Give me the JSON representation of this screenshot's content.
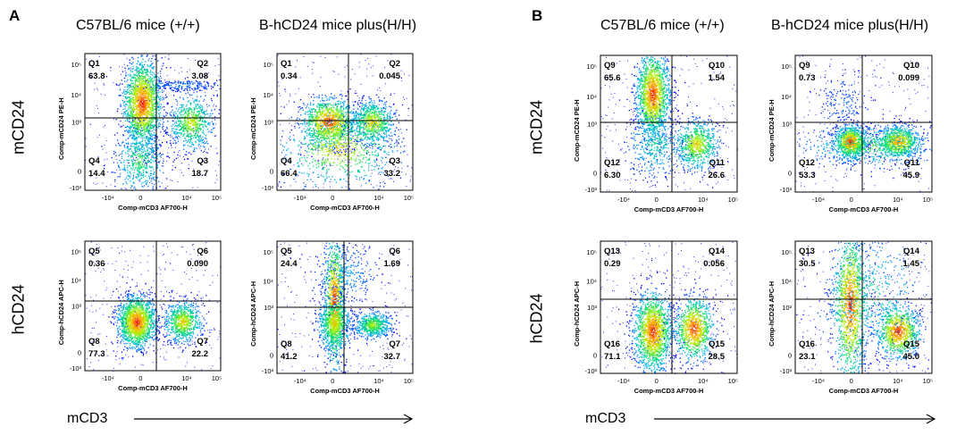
{
  "figure": {
    "panel_a_letter": "A",
    "panel_b_letter": "B",
    "row_top_label": "mCD24",
    "row_bottom_label": "hCD24",
    "footer_label": "mCD3",
    "columns": [
      "C57BL/6 mice (+/+)",
      "B-hCD24 mice plus(H/H)",
      "C57BL/6 mice (+/+)",
      "B-hCD24 mice plus(H/H)"
    ],
    "x_axis_title": "Comp-mCD3 AF700-H",
    "x_tick_labels": [
      "-10⁴",
      "0",
      "10⁴",
      "10⁵"
    ],
    "y_tick_labels": [
      "-10³",
      "0",
      "10³",
      "10⁴",
      "10⁵"
    ],
    "y_axis_titles": {
      "mcd24": "Comp-mCD24 PE-H",
      "hcd24": "Comp-hCD24 APC-H"
    }
  },
  "chart_data": [
    {
      "type": "scatter",
      "plot": "A-mCD24-C57BL6",
      "y_axis": "Comp-mCD24 PE-H",
      "x_axis": "Comp-mCD3 AF700-H",
      "quadrants": [
        {
          "q": "Q1",
          "value": "63.8"
        },
        {
          "q": "Q2",
          "value": "3.08"
        },
        {
          "q": "Q3",
          "value": "18.7"
        },
        {
          "q": "Q4",
          "value": "14.4"
        }
      ]
    },
    {
      "type": "scatter",
      "plot": "A-mCD24-BhCD24",
      "y_axis": "Comp-mCD24 PE-H",
      "x_axis": "Comp-mCD3 AF700-H",
      "quadrants": [
        {
          "q": "Q1",
          "value": "0.34"
        },
        {
          "q": "Q2",
          "value": "0.045"
        },
        {
          "q": "Q3",
          "value": "33.2"
        },
        {
          "q": "Q4",
          "value": "66.4"
        }
      ]
    },
    {
      "type": "scatter",
      "plot": "A-hCD24-C57BL6",
      "y_axis": "Comp-hCD24 APC-H",
      "x_axis": "Comp-mCD3 AF700-H",
      "quadrants": [
        {
          "q": "Q5",
          "value": "0.36"
        },
        {
          "q": "Q6",
          "value": "0.090"
        },
        {
          "q": "Q7",
          "value": "22.2"
        },
        {
          "q": "Q8",
          "value": "77.3"
        }
      ]
    },
    {
      "type": "scatter",
      "plot": "A-hCD24-BhCD24",
      "y_axis": "Comp-hCD24 APC-H",
      "x_axis": "Comp-mCD3 AF700-H",
      "quadrants": [
        {
          "q": "Q5",
          "value": "24.4"
        },
        {
          "q": "Q6",
          "value": "1.69"
        },
        {
          "q": "Q7",
          "value": "32.7"
        },
        {
          "q": "Q8",
          "value": "41.2"
        }
      ]
    },
    {
      "type": "scatter",
      "plot": "B-mCD24-C57BL6",
      "y_axis": "Comp-mCD24 PE-H",
      "x_axis": "Comp-mCD3 AF700-H",
      "quadrants": [
        {
          "q": "Q9",
          "value": "65.6"
        },
        {
          "q": "Q10",
          "value": "1.54"
        },
        {
          "q": "Q11",
          "value": "26.6"
        },
        {
          "q": "Q12",
          "value": "6.30"
        }
      ]
    },
    {
      "type": "scatter",
      "plot": "B-mCD24-BhCD24",
      "y_axis": "Comp-mCD24 PE-H",
      "x_axis": "Comp-mCD3 AF700-H",
      "quadrants": [
        {
          "q": "Q9",
          "value": "0.73"
        },
        {
          "q": "Q10",
          "value": "0.099"
        },
        {
          "q": "Q11",
          "value": "45.9"
        },
        {
          "q": "Q12",
          "value": "53.3"
        }
      ]
    },
    {
      "type": "scatter",
      "plot": "B-hCD24-C57BL6",
      "y_axis": "Comp-hCD24 APC-H",
      "x_axis": "Comp-mCD3 AF700-H",
      "quadrants": [
        {
          "q": "Q13",
          "value": "0.29"
        },
        {
          "q": "Q14",
          "value": "0.056"
        },
        {
          "q": "Q15",
          "value": "28.5"
        },
        {
          "q": "Q16",
          "value": "71.1"
        }
      ]
    },
    {
      "type": "scatter",
      "plot": "B-hCD24-BhCD24",
      "y_axis": "Comp-hCD24 APC-H",
      "x_axis": "Comp-mCD3 AF700-H",
      "quadrants": [
        {
          "q": "Q13",
          "value": "30.5"
        },
        {
          "q": "Q14",
          "value": "1.45"
        },
        {
          "q": "Q15",
          "value": "45.0"
        },
        {
          "q": "Q16",
          "value": "23.1"
        }
      ]
    }
  ]
}
